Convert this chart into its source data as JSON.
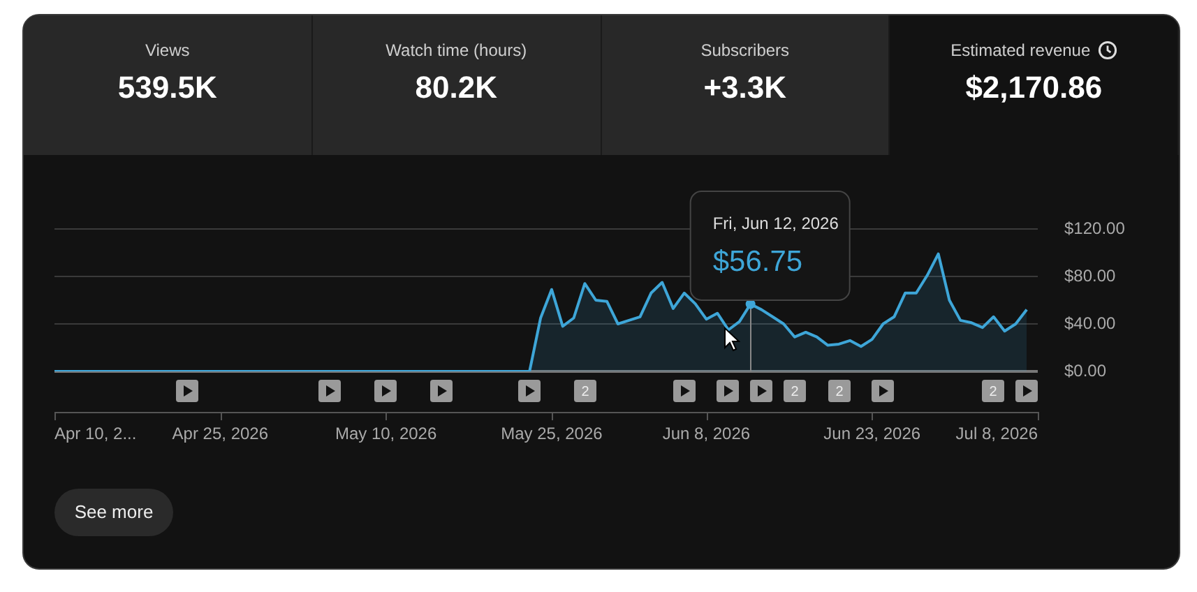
{
  "chart_data": [
    {
      "type": "other",
      "annotations": [
        "Views",
        "539.5K",
        "Watch time (hours)",
        "80.2K",
        "Subscribers",
        "+3.3K",
        "Estimated revenue",
        "$2,170.86"
      ]
    },
    {
      "type": "area",
      "legend": false,
      "grid": "y",
      "marker": "none",
      "series": [
        {
          "color": "#3ea6d8",
          "x": [
            "2026-04-10",
            "2026-05-23",
            "2026-05-24",
            "2026-05-25",
            "2026-05-26",
            "2026-05-27",
            "2026-05-28",
            "2026-05-29",
            "2026-05-30",
            "2026-05-31",
            "2026-06-01",
            "2026-06-02",
            "2026-06-03",
            "2026-06-04",
            "2026-06-05",
            "2026-06-06",
            "2026-06-07",
            "2026-06-08",
            "2026-06-09",
            "2026-06-10",
            "2026-06-11",
            "2026-06-12",
            "2026-06-13",
            "2026-06-14",
            "2026-06-15",
            "2026-06-16",
            "2026-06-17",
            "2026-06-18",
            "2026-06-19",
            "2026-06-20",
            "2026-06-21",
            "2026-06-22",
            "2026-06-23",
            "2026-06-24",
            "2026-06-25",
            "2026-06-26",
            "2026-06-27",
            "2026-06-28",
            "2026-06-29",
            "2026-06-30",
            "2026-07-01",
            "2026-07-02",
            "2026-07-03",
            "2026-07-04",
            "2026-07-05",
            "2026-07-06",
            "2026-07-07"
          ],
          "values": [
            0,
            0,
            45,
            69,
            38,
            45,
            74,
            60,
            59,
            40,
            43,
            46,
            66,
            75,
            53,
            66,
            57,
            44,
            49,
            35,
            42,
            56.75,
            52,
            46,
            40,
            29,
            33,
            29,
            22,
            23,
            26,
            21,
            27,
            40,
            46,
            66,
            66,
            81,
            99,
            60,
            43,
            41,
            37,
            46,
            34,
            40,
            52
          ]
        }
      ],
      "xlim": [
        "2026-04-10",
        "2026-07-08"
      ],
      "xticks": [
        {
          "value": "2026-04-10",
          "label": "Apr 10, 2..."
        },
        {
          "value": "2026-04-25",
          "label": "Apr 25, 2026"
        },
        {
          "value": "2026-05-10",
          "label": "May 10, 2026"
        },
        {
          "value": "2026-05-25",
          "label": "May 25, 2026"
        },
        {
          "value": "2026-06-08",
          "label": "Jun 8, 2026"
        },
        {
          "value": "2026-06-23",
          "label": "Jun 23, 2026"
        },
        {
          "value": "2026-07-08",
          "label": "Jul 8, 2026"
        }
      ],
      "ref_lines": [
        {
          "axis": "x",
          "value": "2026-06-12",
          "color": "#888888"
        }
      ],
      "ylim": [
        0,
        120
      ],
      "yticks": [
        {
          "value": 0,
          "label": "$0.00"
        },
        {
          "value": 40,
          "label": "$40.00"
        },
        {
          "value": 80,
          "label": "$80.00"
        },
        {
          "value": 120,
          "label": "$120.00"
        }
      ],
      "annotations": [
        "Fri, Jun 12, 2026",
        "$56.75",
        "2",
        "2",
        "2",
        "2",
        "See more"
      ]
    }
  ]
}
